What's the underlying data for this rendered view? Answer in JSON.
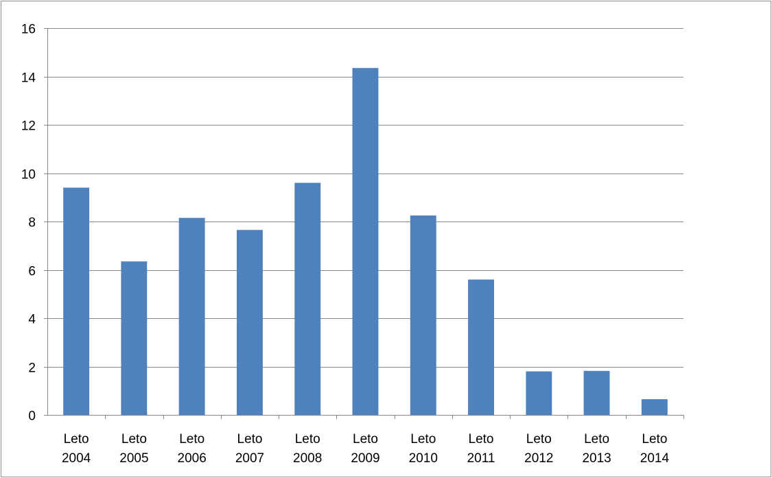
{
  "chart_data": {
    "type": "bar",
    "categories": [
      [
        "Leto",
        "2004"
      ],
      [
        "Leto",
        "2005"
      ],
      [
        "Leto",
        "2006"
      ],
      [
        "Leto",
        "2007"
      ],
      [
        "Leto",
        "2008"
      ],
      [
        "Leto",
        "2009"
      ],
      [
        "Leto",
        "2010"
      ],
      [
        "Leto",
        "2011"
      ],
      [
        "Leto",
        "2012"
      ],
      [
        "Leto",
        "2013"
      ],
      [
        "Leto",
        "2014"
      ]
    ],
    "values": [
      9.4,
      6.35,
      8.15,
      7.65,
      9.6,
      14.35,
      8.25,
      5.6,
      1.8,
      1.82,
      0.65
    ],
    "title": "",
    "xlabel": "",
    "ylabel": "",
    "ylim": [
      0,
      16
    ],
    "yticks": [
      "0",
      "2",
      "4",
      "6",
      "8",
      "10",
      "12",
      "14",
      "16"
    ],
    "grid": true,
    "legend": "none",
    "bar_color": "#4f81bd",
    "gridline_color": "#868686"
  }
}
